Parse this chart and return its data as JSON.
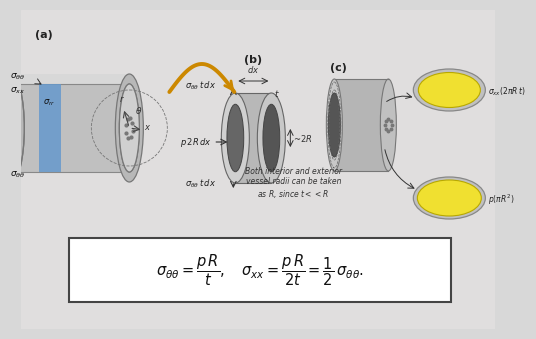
{
  "bg_color": "#d8d8d8",
  "upper_bg": "#d0d0d0",
  "formula_bg": "#ffffff",
  "formula_border": "#444444",
  "cylinder_gray": "#c0c0c0",
  "cylinder_dark": "#a0a0a0",
  "cylinder_light": "#d8d8d8",
  "blue_patch": "#6699cc",
  "orange_arrow": "#cc8800",
  "yellow_disc": "#f0e030",
  "yellow_border": "#b8a800",
  "dark_hole": "#444444",
  "label_a": "(a)",
  "label_b": "(b)",
  "label_c": "(c)",
  "formula1": "$\\sigma_{\\theta\\theta} = \\dfrac{p\\,R}{t},$",
  "formula2": "$\\sigma_{xx} = \\dfrac{p\\,R}{2t} = \\dfrac{1}{2}\\,\\sigma_{\\theta\\theta}.$",
  "note": "Both interior and exterior\nvessel radii can be taken\nas $R$, since $t << R$",
  "sigma_tt": "$\\sigma_{\\theta\\theta}$",
  "sigma_xx": "$\\sigma_{xx}$",
  "sigma_rr": "$\\sigma_{rr}$",
  "lbl_stt_tdx": "$\\sigma_{\\theta\\theta}\\,t\\,dx$",
  "lbl_p2Rdx": "$p\\,2R\\,dx$",
  "lbl_sxx_2piRt": "$\\sigma_{xx}(2\\pi R\\,t)$",
  "lbl_ppiR2": "$p(\\pi R^2)$"
}
